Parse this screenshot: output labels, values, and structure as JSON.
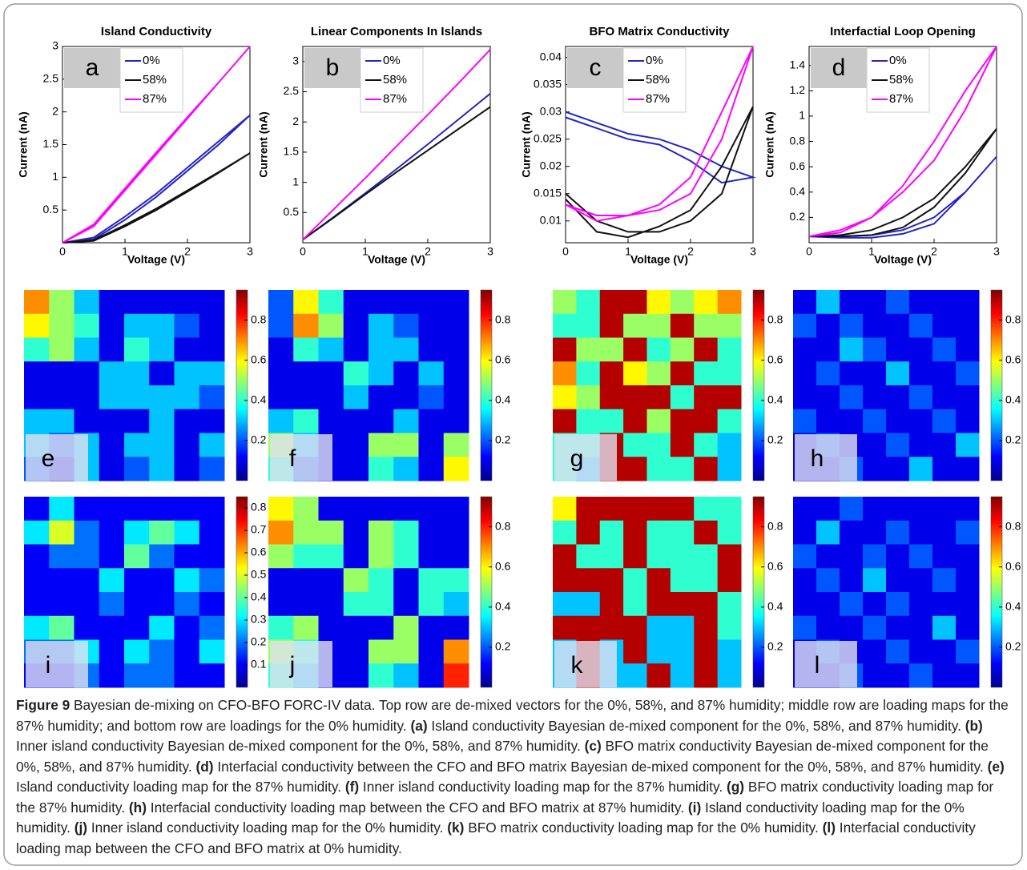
{
  "chart_data": [
    {
      "type": "line",
      "title": "Island Conductivity",
      "label": "a",
      "xlabel": "Voltage (V)",
      "ylabel": "Current (nA)",
      "x": [
        0,
        0.5,
        1,
        1.5,
        2,
        2.5,
        3,
        2.5,
        2,
        1.5,
        1,
        0.5,
        0
      ],
      "xlim": [
        0,
        3
      ],
      "xticks": [
        0,
        1,
        2,
        3
      ],
      "ylim": [
        0,
        3
      ],
      "yticks": [
        0.5,
        1,
        1.5,
        2,
        2.5,
        3
      ],
      "series": [
        {
          "name": "0%",
          "color": "#2424c8",
          "values": [
            0,
            0.05,
            0.35,
            0.7,
            1.1,
            1.5,
            1.95,
            1.55,
            1.15,
            0.75,
            0.4,
            0.08,
            0
          ]
        },
        {
          "name": "58%",
          "color": "#111111",
          "values": [
            0,
            0.03,
            0.25,
            0.5,
            0.78,
            1.07,
            1.37,
            1.08,
            0.8,
            0.52,
            0.27,
            0.04,
            0
          ]
        },
        {
          "name": "87%",
          "color": "#ff00ff",
          "values": [
            0,
            0.25,
            0.8,
            1.35,
            1.9,
            2.45,
            3,
            2.45,
            1.92,
            1.38,
            0.83,
            0.28,
            0
          ]
        }
      ]
    },
    {
      "type": "line",
      "title": "Linear Components In Islands",
      "label": "b",
      "xlabel": "Voltage (V)",
      "ylabel": "Current (nA)",
      "x": [
        0,
        0.5,
        1,
        1.5,
        2,
        2.5,
        3,
        2.5,
        2,
        1.5,
        1,
        0.5,
        0
      ],
      "xlim": [
        0,
        3
      ],
      "xticks": [
        0,
        1,
        2,
        3
      ],
      "ylim": [
        0,
        3.25
      ],
      "yticks": [
        0.5,
        1,
        1.5,
        2,
        2.5,
        3
      ],
      "series": [
        {
          "name": "0%",
          "color": "#2424c8",
          "values": [
            0.05,
            0.43,
            0.82,
            1.22,
            1.63,
            2.05,
            2.47,
            2.05,
            1.63,
            1.22,
            0.82,
            0.43,
            0.05
          ]
        },
        {
          "name": "58%",
          "color": "#111111",
          "values": [
            0.05,
            0.42,
            0.8,
            1.17,
            1.53,
            1.89,
            2.25,
            1.89,
            1.53,
            1.17,
            0.8,
            0.42,
            0.05
          ]
        },
        {
          "name": "87%",
          "color": "#ff00ff",
          "values": [
            0.05,
            0.56,
            1.07,
            1.6,
            2.12,
            2.65,
            3.2,
            2.65,
            2.12,
            1.6,
            1.07,
            0.56,
            0.05
          ]
        }
      ]
    },
    {
      "type": "line",
      "title": "BFO Matrix Conductivity",
      "label": "c",
      "xlabel": "Voltage (V)",
      "ylabel": "Current (nA)",
      "x": [
        0,
        0.5,
        1,
        1.5,
        2,
        2.5,
        3,
        2.5,
        2,
        1.5,
        1,
        0.5,
        0
      ],
      "xlim": [
        0,
        3
      ],
      "xticks": [
        0,
        1,
        2,
        3
      ],
      "ylim": [
        0.006,
        0.042
      ],
      "yticks": [
        0.01,
        0.015,
        0.02,
        0.025,
        0.03,
        0.035,
        0.04
      ],
      "series": [
        {
          "name": "0%",
          "color": "#2424c8",
          "values": [
            0.03,
            0.028,
            0.026,
            0.025,
            0.023,
            0.02,
            0.018,
            0.017,
            0.021,
            0.024,
            0.025,
            0.027,
            0.029
          ]
        },
        {
          "name": "58%",
          "color": "#111111",
          "values": [
            0.015,
            0.01,
            0.008,
            0.008,
            0.01,
            0.015,
            0.031,
            0.02,
            0.012,
            0.009,
            0.007,
            0.008,
            0.014
          ]
        },
        {
          "name": "87%",
          "color": "#ff00ff",
          "values": [
            0.013,
            0.011,
            0.011,
            0.012,
            0.015,
            0.025,
            0.042,
            0.03,
            0.018,
            0.013,
            0.011,
            0.01,
            0.013
          ]
        }
      ]
    },
    {
      "type": "line",
      "title": "Interfactial Loop Opening",
      "label": "d",
      "xlabel": "Voltage (V)",
      "ylabel": "Current (nA)",
      "x": [
        0,
        0.5,
        1,
        1.5,
        2,
        2.5,
        3,
        2.5,
        2,
        1.5,
        1,
        0.5,
        0
      ],
      "xlim": [
        0,
        3
      ],
      "xticks": [
        0,
        1,
        2,
        3
      ],
      "ylim": [
        0,
        1.55
      ],
      "yticks": [
        0.2,
        0.4,
        0.6,
        0.8,
        1,
        1.2,
        1.4
      ],
      "series": [
        {
          "name": "0%",
          "color": "#2424c8",
          "values": [
            0.05,
            0.05,
            0.06,
            0.1,
            0.2,
            0.4,
            0.68,
            0.4,
            0.15,
            0.07,
            0.04,
            0.04,
            0.05
          ]
        },
        {
          "name": "58%",
          "color": "#111111",
          "values": [
            0.05,
            0.06,
            0.1,
            0.2,
            0.35,
            0.6,
            0.9,
            0.55,
            0.28,
            0.12,
            0.06,
            0.05,
            0.05
          ]
        },
        {
          "name": "87%",
          "color": "#ff00ff",
          "values": [
            0.05,
            0.1,
            0.2,
            0.4,
            0.65,
            1.05,
            1.55,
            1.2,
            0.8,
            0.45,
            0.2,
            0.08,
            0.05
          ]
        }
      ]
    },
    {
      "type": "heatmap",
      "label": "e",
      "zlim": [
        0,
        0.95
      ],
      "zticks": [
        0.2,
        0.4,
        0.6,
        0.8
      ],
      "values": [
        [
          0.7,
          0.5,
          0.3,
          0.1,
          0.1,
          0.1,
          0.1,
          0.1
        ],
        [
          0.6,
          0.5,
          0.4,
          0.1,
          0.3,
          0.3,
          0.2,
          0.1
        ],
        [
          0.4,
          0.5,
          0.3,
          0.1,
          0.4,
          0.3,
          0.1,
          0.1
        ],
        [
          0.1,
          0.1,
          0.1,
          0.3,
          0.3,
          0.1,
          0.3,
          0.3
        ],
        [
          0.1,
          0.1,
          0.1,
          0.3,
          0.3,
          0.3,
          0.3,
          0.2
        ],
        [
          0.3,
          0.3,
          0.1,
          0.1,
          0.1,
          0.3,
          0.1,
          0.1
        ],
        [
          0.3,
          0.2,
          0.3,
          0.1,
          0.3,
          0.3,
          0.1,
          0.3
        ],
        [
          0.2,
          0.1,
          0.3,
          0.1,
          0.2,
          0.3,
          0.1,
          0.2
        ]
      ]
    },
    {
      "type": "heatmap",
      "label": "f",
      "zlim": [
        0,
        0.95
      ],
      "zticks": [
        0.2,
        0.4,
        0.6,
        0.8
      ],
      "values": [
        [
          0.2,
          0.6,
          0.4,
          0.1,
          0.1,
          0.1,
          0.1,
          0.1
        ],
        [
          0.2,
          0.7,
          0.5,
          0.1,
          0.3,
          0.2,
          0.1,
          0.1
        ],
        [
          0.1,
          0.4,
          0.3,
          0.1,
          0.3,
          0.3,
          0.1,
          0.1
        ],
        [
          0.1,
          0.1,
          0.1,
          0.4,
          0.3,
          0.1,
          0.3,
          0.1
        ],
        [
          0.1,
          0.1,
          0.1,
          0.3,
          0.1,
          0.1,
          0.2,
          0.1
        ],
        [
          0.3,
          0.4,
          0.1,
          0.1,
          0.1,
          0.3,
          0.1,
          0.1
        ],
        [
          0.5,
          0.3,
          0.1,
          0.1,
          0.5,
          0.5,
          0.1,
          0.5
        ],
        [
          0.4,
          0.2,
          0.1,
          0.1,
          0.4,
          0.3,
          0.1,
          0.6
        ]
      ]
    },
    {
      "type": "heatmap",
      "label": "g",
      "zlim": [
        0,
        0.95
      ],
      "zticks": [
        0.2,
        0.4,
        0.6,
        0.8
      ],
      "values": [
        [
          0.5,
          0.4,
          0.9,
          0.9,
          0.6,
          0.5,
          0.6,
          0.7
        ],
        [
          0.4,
          0.4,
          0.9,
          0.5,
          0.5,
          0.9,
          0.5,
          0.5
        ],
        [
          0.9,
          0.5,
          0.5,
          0.9,
          0.4,
          0.5,
          0.9,
          0.4
        ],
        [
          0.7,
          0.4,
          0.9,
          0.6,
          0.5,
          0.9,
          0.4,
          0.4
        ],
        [
          0.6,
          0.5,
          0.9,
          0.9,
          0.9,
          0.4,
          0.9,
          0.9
        ],
        [
          0.9,
          0.4,
          0.4,
          0.9,
          0.5,
          0.9,
          0.9,
          0.4
        ],
        [
          0.4,
          0.4,
          0.9,
          0.4,
          0.4,
          0.9,
          0.4,
          0.3
        ],
        [
          0.4,
          0.3,
          0.9,
          0.9,
          0.4,
          0.4,
          0.9,
          0.3
        ]
      ]
    },
    {
      "type": "heatmap",
      "label": "h",
      "zlim": [
        0,
        0.95
      ],
      "zticks": [
        0.2,
        0.4,
        0.6,
        0.8
      ],
      "values": [
        [
          0.1,
          0.3,
          0.1,
          0.1,
          0.2,
          0.1,
          0.1,
          0.1
        ],
        [
          0.2,
          0.1,
          0.2,
          0.1,
          0.1,
          0.2,
          0.1,
          0.1
        ],
        [
          0.1,
          0.1,
          0.3,
          0.2,
          0.1,
          0.1,
          0.2,
          0.1
        ],
        [
          0.1,
          0.2,
          0.1,
          0.1,
          0.3,
          0.1,
          0.1,
          0.2
        ],
        [
          0.1,
          0.1,
          0.2,
          0.1,
          0.1,
          0.2,
          0.1,
          0.1
        ],
        [
          0.2,
          0.1,
          0.1,
          0.2,
          0.1,
          0.1,
          0.2,
          0.1
        ],
        [
          0.1,
          0.2,
          0.1,
          0.1,
          0.2,
          0.1,
          0.1,
          0.3
        ],
        [
          0.1,
          0.1,
          0.2,
          0.1,
          0.1,
          0.3,
          0.1,
          0.1
        ]
      ]
    },
    {
      "type": "heatmap",
      "label": "i",
      "zlim": [
        0,
        0.85
      ],
      "zticks": [
        0.1,
        0.2,
        0.3,
        0.4,
        0.5,
        0.6,
        0.7,
        0.8
      ],
      "values": [
        [
          0.1,
          0.3,
          0.1,
          0.1,
          0.1,
          0.1,
          0.1,
          0.1
        ],
        [
          0.3,
          0.5,
          0.2,
          0.1,
          0.3,
          0.4,
          0.3,
          0.1
        ],
        [
          0.1,
          0.2,
          0.2,
          0.1,
          0.4,
          0.2,
          0.1,
          0.1
        ],
        [
          0.1,
          0.1,
          0.1,
          0.3,
          0.1,
          0.1,
          0.3,
          0.2
        ],
        [
          0.1,
          0.1,
          0.1,
          0.2,
          0.1,
          0.1,
          0.2,
          0.1
        ],
        [
          0.3,
          0.4,
          0.1,
          0.1,
          0.1,
          0.3,
          0.1,
          0.2
        ],
        [
          0.2,
          0.2,
          0.3,
          0.1,
          0.3,
          0.2,
          0.1,
          0.3
        ],
        [
          0.1,
          0.1,
          0.2,
          0.1,
          0.2,
          0.2,
          0.1,
          0.1
        ]
      ]
    },
    {
      "type": "heatmap",
      "label": "j",
      "zlim": [
        0,
        0.95
      ],
      "zticks": [
        0.2,
        0.4,
        0.6,
        0.8
      ],
      "values": [
        [
          0.6,
          0.5,
          0.1,
          0.1,
          0.1,
          0.1,
          0.1,
          0.1
        ],
        [
          0.7,
          0.5,
          0.5,
          0.1,
          0.5,
          0.4,
          0.1,
          0.1
        ],
        [
          0.5,
          0.4,
          0.4,
          0.1,
          0.5,
          0.4,
          0.1,
          0.1
        ],
        [
          0.1,
          0.1,
          0.1,
          0.5,
          0.4,
          0.1,
          0.4,
          0.4
        ],
        [
          0.1,
          0.1,
          0.1,
          0.4,
          0.4,
          0.1,
          0.4,
          0.3
        ],
        [
          0.4,
          0.5,
          0.1,
          0.1,
          0.1,
          0.5,
          0.1,
          0.1
        ],
        [
          0.5,
          0.4,
          0.1,
          0.1,
          0.5,
          0.5,
          0.1,
          0.7
        ],
        [
          0.4,
          0.3,
          0.1,
          0.1,
          0.4,
          0.3,
          0.1,
          0.8
        ]
      ]
    },
    {
      "type": "heatmap",
      "label": "k",
      "zlim": [
        0,
        0.95
      ],
      "zticks": [
        0.2,
        0.4,
        0.6,
        0.8
      ],
      "values": [
        [
          0.6,
          0.9,
          0.9,
          0.9,
          0.9,
          0.9,
          0.4,
          0.4
        ],
        [
          0.4,
          0.9,
          0.4,
          0.9,
          0.4,
          0.4,
          0.9,
          0.4
        ],
        [
          0.9,
          0.4,
          0.4,
          0.9,
          0.4,
          0.4,
          0.4,
          0.9
        ],
        [
          0.9,
          0.9,
          0.9,
          0.4,
          0.9,
          0.4,
          0.4,
          0.9
        ],
        [
          0.3,
          0.3,
          0.9,
          0.4,
          0.9,
          0.9,
          0.9,
          0.4
        ],
        [
          0.9,
          0.9,
          0.9,
          0.9,
          0.3,
          0.3,
          0.9,
          0.4
        ],
        [
          0.3,
          0.9,
          0.3,
          0.9,
          0.3,
          0.3,
          0.9,
          0.3
        ],
        [
          0.3,
          0.9,
          0.3,
          0.3,
          0.9,
          0.3,
          0.9,
          0.3
        ]
      ]
    },
    {
      "type": "heatmap",
      "label": "l",
      "zlim": [
        0,
        0.95
      ],
      "zticks": [
        0.2,
        0.4,
        0.6,
        0.8
      ],
      "values": [
        [
          0.1,
          0.1,
          0.2,
          0.1,
          0.1,
          0.1,
          0.1,
          0.1
        ],
        [
          0.1,
          0.3,
          0.1,
          0.1,
          0.2,
          0.1,
          0.1,
          0.2
        ],
        [
          0.2,
          0.1,
          0.1,
          0.2,
          0.1,
          0.2,
          0.1,
          0.1
        ],
        [
          0.1,
          0.2,
          0.1,
          0.3,
          0.1,
          0.1,
          0.2,
          0.1
        ],
        [
          0.1,
          0.1,
          0.2,
          0.1,
          0.2,
          0.1,
          0.1,
          0.1
        ],
        [
          0.2,
          0.1,
          0.1,
          0.2,
          0.1,
          0.1,
          0.3,
          0.1
        ],
        [
          0.1,
          0.2,
          0.1,
          0.1,
          0.2,
          0.1,
          0.1,
          0.2
        ],
        [
          0.1,
          0.1,
          0.2,
          0.1,
          0.1,
          0.2,
          0.1,
          0.1
        ]
      ]
    }
  ],
  "caption": {
    "label": "Figure 9",
    "text": "Bayesian de-mixing on CFO-BFO FORC-IV data. Top row are de-mixed vectors for the 0%, 58%, and 87% humidity; middle row are loading maps for the 87% humidity; and bottom row are loadings for the 0% humidity.",
    "items": [
      {
        "tag": "(a)",
        "text": "Island conductivity Bayesian de-mixed component for the 0%, 58%, and 87% humidity."
      },
      {
        "tag": "(b)",
        "text": "Inner island conductivity Bayesian de-mixed component for the 0%, 58%, and 87% humidity."
      },
      {
        "tag": "(c)",
        "text": "BFO matrix conductivity Bayesian de-mixed component for the 0%, 58%, and 87% humidity."
      },
      {
        "tag": "(d)",
        "text": "Interfacial conductivity between the CFO and BFO matrix Bayesian de-mixed component for the 0%, 58%, and 87% humidity."
      },
      {
        "tag": "(e)",
        "text": "Island conductivity loading map for the 87% humidity."
      },
      {
        "tag": "(f)",
        "text": "Inner island conductivity loading map for the 87% humidity."
      },
      {
        "tag": "(g)",
        "text": "BFO matrix conductivity loading map for the 87% humidity."
      },
      {
        "tag": "(h)",
        "text": "Interfacial conductivity loading map between the CFO and BFO matrix at 87% humidity."
      },
      {
        "tag": "(i)",
        "text": "Island conductivity loading map for the 0% humidity."
      },
      {
        "tag": "(j)",
        "text": "Inner island conductivity loading map for the 0% humidity."
      },
      {
        "tag": "(k)",
        "text": "BFO matrix conductivity loading map for the 0% humidity."
      },
      {
        "tag": "(l)",
        "text": "Interfacial conductivity loading map between the CFO and BFO matrix at 0% humidity."
      }
    ]
  }
}
